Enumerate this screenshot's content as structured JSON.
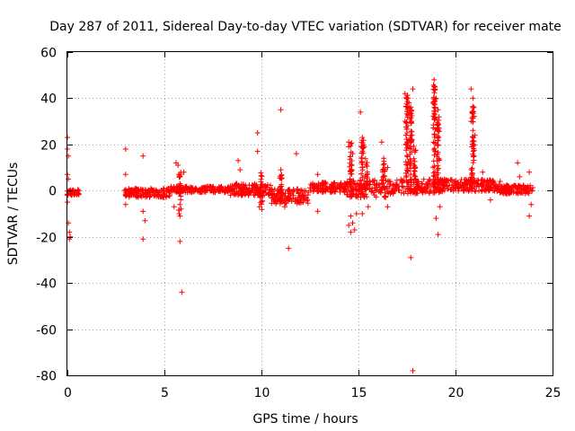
{
  "colors": {
    "points": "#ff0000",
    "axes": "#000000",
    "grid": "#a0a0a0",
    "background": "#ffffff"
  },
  "chart_data": {
    "type": "scatter",
    "title": "Day 287 of 2011, Sidereal Day-to-day VTEC variation (SDTVAR) for receiver mate",
    "xlabel": "GPS time / hours",
    "ylabel": "SDTVAR / TECUs",
    "xlim": [
      0,
      25
    ],
    "ylim": [
      -80,
      60
    ],
    "xticks": [
      0,
      5,
      10,
      15,
      20,
      25
    ],
    "yticks": [
      -80,
      -60,
      -40,
      -20,
      0,
      20,
      40,
      60
    ],
    "grid": true,
    "marker": "+",
    "series": [
      {
        "name": "SDTVAR",
        "points": [
          [
            0.0,
            23
          ],
          [
            0.0,
            18
          ],
          [
            0.05,
            15
          ],
          [
            0.0,
            7
          ],
          [
            0.05,
            5
          ],
          [
            0.0,
            -2
          ],
          [
            0.0,
            -5
          ],
          [
            0.05,
            -14
          ],
          [
            0.1,
            -18
          ],
          [
            0.15,
            -20
          ],
          [
            0.1,
            -21
          ],
          [
            3.0,
            18
          ],
          [
            3.0,
            7
          ],
          [
            3.0,
            -6
          ],
          [
            3.9,
            15
          ],
          [
            3.9,
            -9
          ],
          [
            3.9,
            -21
          ],
          [
            4.0,
            -13
          ],
          [
            5.6,
            12
          ],
          [
            5.7,
            11
          ],
          [
            5.8,
            3
          ],
          [
            5.8,
            -11
          ],
          [
            5.8,
            -22
          ],
          [
            5.9,
            -44
          ],
          [
            6.0,
            8
          ],
          [
            5.5,
            -7
          ],
          [
            8.8,
            13
          ],
          [
            8.9,
            9
          ],
          [
            9.8,
            25
          ],
          [
            9.8,
            17
          ],
          [
            9.9,
            -7
          ],
          [
            11.0,
            35
          ],
          [
            11.0,
            9
          ],
          [
            11.2,
            -7
          ],
          [
            11.4,
            -25
          ],
          [
            11.8,
            16
          ],
          [
            12.9,
            7
          ],
          [
            12.9,
            -9
          ],
          [
            14.5,
            21
          ],
          [
            14.5,
            19
          ],
          [
            14.7,
            16
          ],
          [
            14.6,
            -11
          ],
          [
            14.7,
            -14
          ],
          [
            14.8,
            -17
          ],
          [
            14.5,
            -15
          ],
          [
            14.6,
            -18
          ],
          [
            14.9,
            -10
          ],
          [
            15.1,
            34
          ],
          [
            15.2,
            23
          ],
          [
            15.3,
            19
          ],
          [
            15.2,
            -10
          ],
          [
            15.5,
            -7
          ],
          [
            16.2,
            21
          ],
          [
            16.3,
            14
          ],
          [
            16.5,
            -7
          ],
          [
            16.5,
            10
          ],
          [
            17.4,
            42
          ],
          [
            17.5,
            40
          ],
          [
            17.6,
            38
          ],
          [
            17.7,
            35
          ],
          [
            17.8,
            44
          ],
          [
            17.4,
            30
          ],
          [
            17.5,
            25
          ],
          [
            17.7,
            -29
          ],
          [
            17.8,
            -78
          ],
          [
            18.9,
            48
          ],
          [
            18.9,
            45
          ],
          [
            19.0,
            40
          ],
          [
            19.1,
            35
          ],
          [
            19.0,
            -12
          ],
          [
            19.1,
            -19
          ],
          [
            19.2,
            -7
          ],
          [
            20.8,
            44
          ],
          [
            20.9,
            40
          ],
          [
            20.9,
            32
          ],
          [
            21.0,
            24
          ],
          [
            20.8,
            30
          ],
          [
            21.4,
            8
          ],
          [
            21.8,
            -4
          ],
          [
            22.3,
            4
          ],
          [
            22.5,
            2
          ],
          [
            23.2,
            12
          ],
          [
            23.3,
            6
          ],
          [
            23.8,
            8
          ],
          [
            23.8,
            -11
          ],
          [
            23.9,
            -6
          ]
        ],
        "bands": [
          {
            "x_start": 0.0,
            "x_end": 0.6,
            "center": -0.8,
            "half_width": 1.2
          },
          {
            "x_start": 2.9,
            "x_end": 5.3,
            "center": -1.0,
            "half_width": 2.0
          },
          {
            "x_start": 5.3,
            "x_end": 8.4,
            "center": 0.5,
            "half_width": 1.3
          },
          {
            "x_start": 8.4,
            "x_end": 10.5,
            "center": 0.5,
            "half_width": 2.6
          },
          {
            "x_start": 10.5,
            "x_end": 12.5,
            "center": -2.5,
            "half_width": 3.2
          },
          {
            "x_start": 12.5,
            "x_end": 14.4,
            "center": 1.5,
            "half_width": 2.2
          },
          {
            "x_start": 14.4,
            "x_end": 16.5,
            "center": 0.8,
            "half_width": 3.8
          },
          {
            "x_start": 16.5,
            "x_end": 19.5,
            "center": 1.8,
            "half_width": 3.2
          },
          {
            "x_start": 19.5,
            "x_end": 22.0,
            "center": 2.2,
            "half_width": 2.6
          },
          {
            "x_start": 22.0,
            "x_end": 24.0,
            "center": 0.5,
            "half_width": 2.0
          }
        ],
        "spikes": [
          {
            "x": 14.6,
            "low": 0,
            "high": 21
          },
          {
            "x": 15.2,
            "low": 0,
            "high": 22
          },
          {
            "x": 15.4,
            "low": 0,
            "high": 14
          },
          {
            "x": 16.3,
            "low": 0,
            "high": 13
          },
          {
            "x": 17.5,
            "low": 0,
            "high": 42
          },
          {
            "x": 17.7,
            "low": 0,
            "high": 37
          },
          {
            "x": 17.9,
            "low": 0,
            "high": 20
          },
          {
            "x": 18.9,
            "low": 0,
            "high": 46
          },
          {
            "x": 19.1,
            "low": 0,
            "high": 32
          },
          {
            "x": 20.9,
            "low": 0,
            "high": 37
          },
          {
            "x": 20.8,
            "low": 0,
            "high": 10
          },
          {
            "x": 10.0,
            "low": -9,
            "high": 8
          },
          {
            "x": 11.0,
            "low": -8,
            "high": 9
          },
          {
            "x": 5.8,
            "low": -10,
            "high": 10
          }
        ]
      }
    ]
  }
}
